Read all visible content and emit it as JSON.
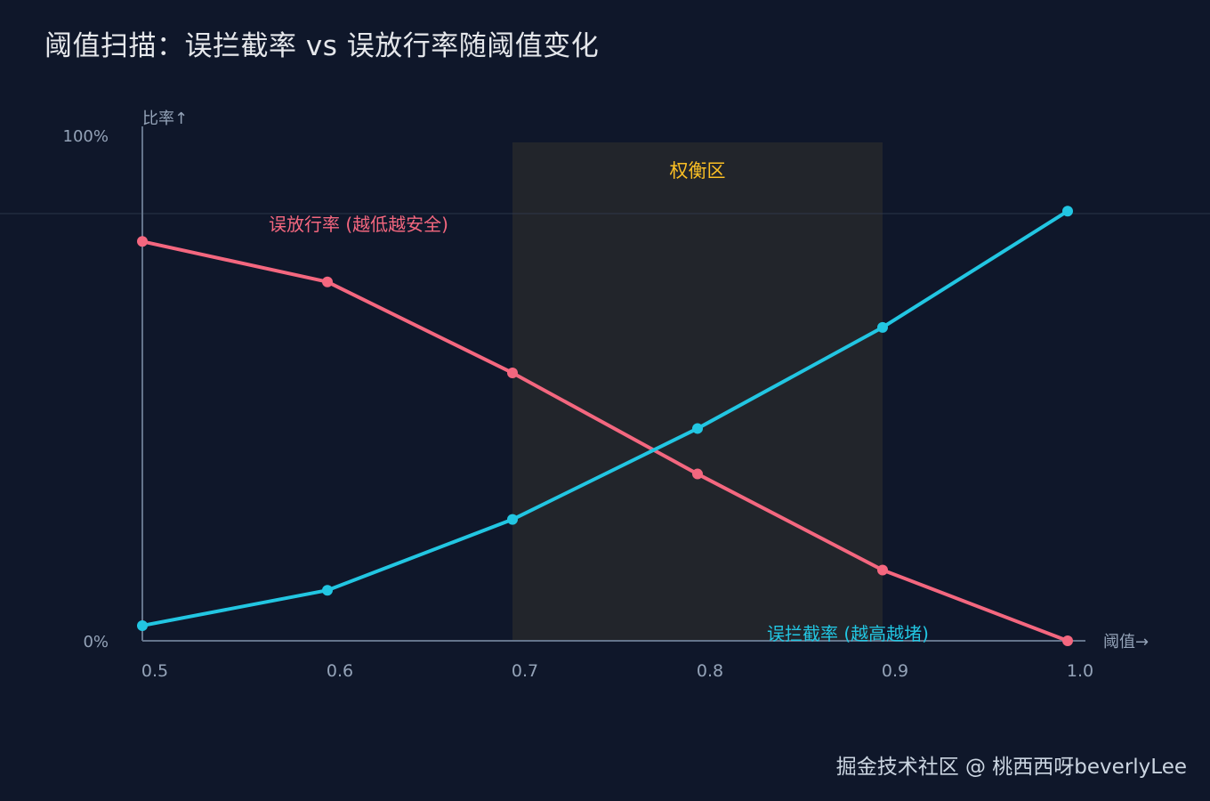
{
  "title": "阈值扫描：误拦截率 vs 误放行率随阈值变化",
  "watermark": "掘金技术社区 @ 桃西西呀beverlyLee",
  "chart_data": {
    "type": "line",
    "title": "阈值扫描：误拦截率 vs 误放行率随阈值变化",
    "xlabel": "阈值→",
    "ylabel": "比率↑",
    "x": [
      0.5,
      0.6,
      0.7,
      0.8,
      0.9,
      1.0
    ],
    "x_tick_labels": [
      "0.5",
      "0.6",
      "0.7",
      "0.8",
      "0.9",
      "1.0"
    ],
    "y_tick_labels": [
      "0%",
      "100%"
    ],
    "ylim": [
      0,
      100
    ],
    "xlim": [
      0.5,
      1.0
    ],
    "grid": false,
    "series": [
      {
        "name": "误放行率 (越低越安全)",
        "color": "#f4677f",
        "values": [
          79,
          71,
          53,
          33,
          14,
          0
        ]
      },
      {
        "name": "误拦截率 (越高越堵)",
        "color": "#22c6e2",
        "values": [
          3,
          10,
          24,
          42,
          62,
          85
        ]
      }
    ],
    "annotations": [
      {
        "type": "band",
        "x_start": 0.7,
        "x_end": 0.9,
        "label": "权衡区",
        "label_color": "#fbbf24"
      }
    ]
  }
}
